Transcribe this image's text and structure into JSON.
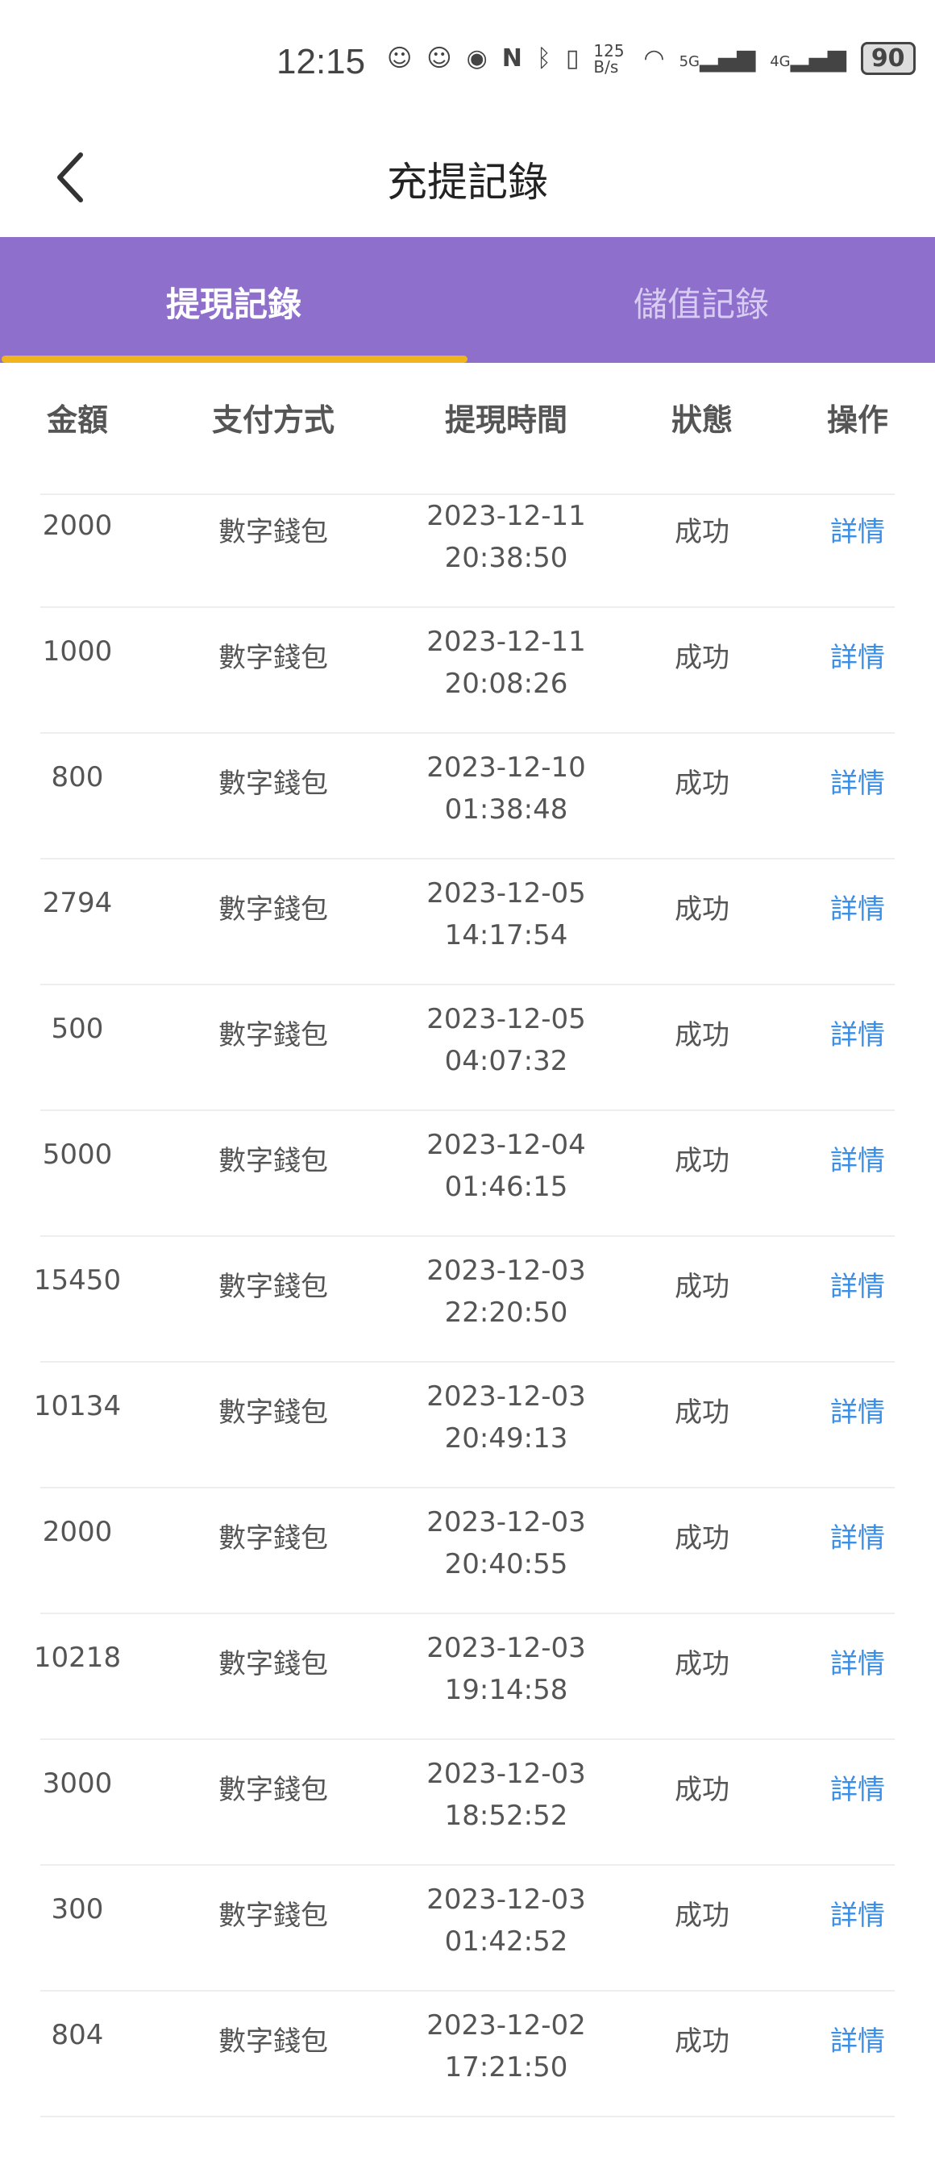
{
  "status_bar": {
    "time": "12:15",
    "net_speed": "125 B/s",
    "signal1": "5G",
    "signal2": "4G",
    "battery": "90"
  },
  "header": {
    "title": "充提記錄"
  },
  "tabs": [
    {
      "label": "提現記錄",
      "active": true
    },
    {
      "label": "儲值記錄",
      "active": false
    }
  ],
  "colors": {
    "tab_bg": "#8e70cc",
    "indicator": "#f0b41c",
    "link": "#3a8ee6"
  },
  "table": {
    "headers": [
      "金額",
      "支付方式",
      "提現時間",
      "狀態",
      "操作"
    ],
    "rows": [
      {
        "amount": "2000",
        "method": "數字錢包",
        "date": "2023-12-11",
        "time": "20:38:50",
        "status": "成功",
        "action": "詳情"
      },
      {
        "amount": "1000",
        "method": "數字錢包",
        "date": "2023-12-11",
        "time": "20:08:26",
        "status": "成功",
        "action": "詳情"
      },
      {
        "amount": "800",
        "method": "數字錢包",
        "date": "2023-12-10",
        "time": "01:38:48",
        "status": "成功",
        "action": "詳情"
      },
      {
        "amount": "2794",
        "method": "數字錢包",
        "date": "2023-12-05",
        "time": "14:17:54",
        "status": "成功",
        "action": "詳情"
      },
      {
        "amount": "500",
        "method": "數字錢包",
        "date": "2023-12-05",
        "time": "04:07:32",
        "status": "成功",
        "action": "詳情"
      },
      {
        "amount": "5000",
        "method": "數字錢包",
        "date": "2023-12-04",
        "time": "01:46:15",
        "status": "成功",
        "action": "詳情"
      },
      {
        "amount": "15450",
        "method": "數字錢包",
        "date": "2023-12-03",
        "time": "22:20:50",
        "status": "成功",
        "action": "詳情"
      },
      {
        "amount": "10134",
        "method": "數字錢包",
        "date": "2023-12-03",
        "time": "20:49:13",
        "status": "成功",
        "action": "詳情"
      },
      {
        "amount": "2000",
        "method": "數字錢包",
        "date": "2023-12-03",
        "time": "20:40:55",
        "status": "成功",
        "action": "詳情"
      },
      {
        "amount": "10218",
        "method": "數字錢包",
        "date": "2023-12-03",
        "time": "19:14:58",
        "status": "成功",
        "action": "詳情"
      },
      {
        "amount": "3000",
        "method": "數字錢包",
        "date": "2023-12-03",
        "time": "18:52:52",
        "status": "成功",
        "action": "詳情"
      },
      {
        "amount": "300",
        "method": "數字錢包",
        "date": "2023-12-03",
        "time": "01:42:52",
        "status": "成功",
        "action": "詳情"
      },
      {
        "amount": "804",
        "method": "數字錢包",
        "date": "2023-12-02",
        "time": "17:21:50",
        "status": "成功",
        "action": "詳情"
      }
    ]
  }
}
